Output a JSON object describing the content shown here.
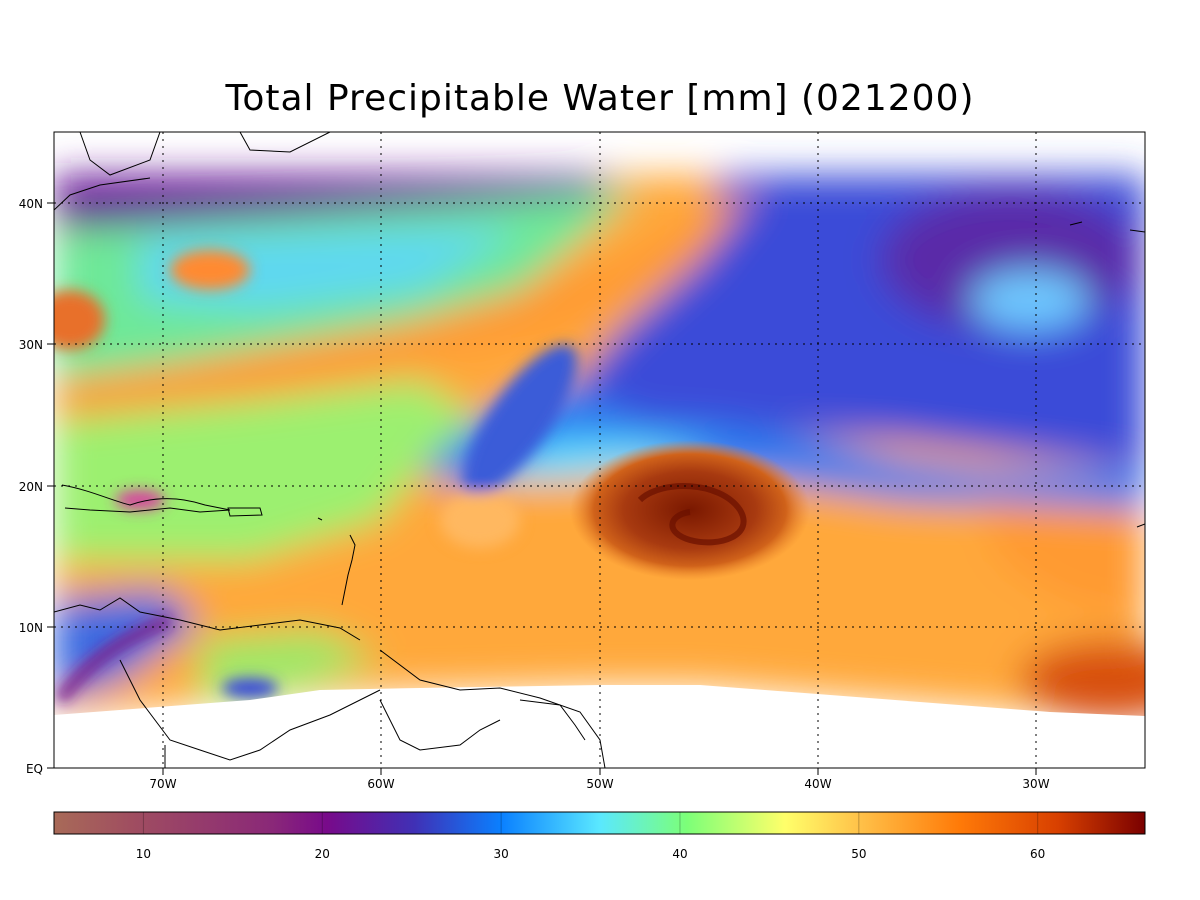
{
  "title": "Total Precipitable Water [mm]  (021200)",
  "map": {
    "lon_range": [
      -75,
      -25
    ],
    "lat_range": [
      0,
      45
    ],
    "lat_ticks": [
      "40N",
      "30N",
      "20N",
      "10N",
      "EQ"
    ],
    "lon_ticks": [
      "70W",
      "60W",
      "50W",
      "40W",
      "30W"
    ],
    "gridlines": "dotted",
    "features": [
      "hurricane-eye",
      "coastlines",
      "data-swath"
    ]
  },
  "colorbar": {
    "range": [
      5,
      66
    ],
    "tick_labels": [
      "10",
      "20",
      "30",
      "40",
      "50",
      "60"
    ],
    "colors": [
      "#a86a58",
      "#8e3c6e",
      "#7a0f8a",
      "#3a2db5",
      "#0a7fff",
      "#5ff0ff",
      "#7fff6a",
      "#ffff6a",
      "#ffb040",
      "#ff7a00",
      "#d84000",
      "#7a0000"
    ]
  }
}
